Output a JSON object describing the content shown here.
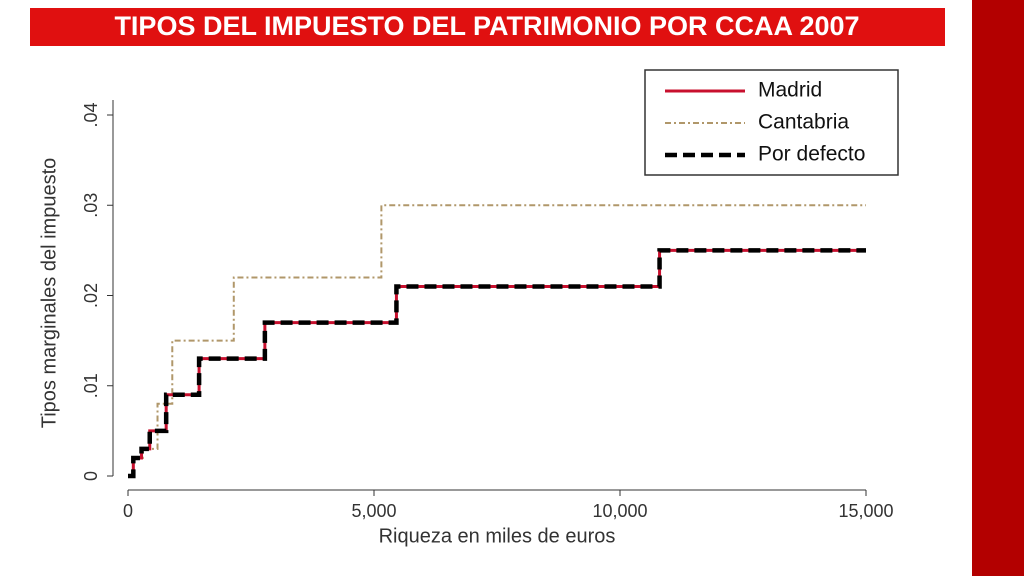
{
  "chart_data": {
    "type": "line",
    "title": "TIPOS DEL IMPUESTO DEL PATRIMONIO POR CCAA 2007",
    "x_label": "Riqueza en miles de euros",
    "y_label": "Tipos marginales del impuesto",
    "xlim": [
      0,
      15000
    ],
    "ylim": [
      0,
      0.04
    ],
    "xticks": [
      0,
      {
        "value": 5000,
        "label": "5,000"
      },
      {
        "value": 10000,
        "label": "10,000"
      },
      {
        "value": 15000,
        "label": "15,000"
      }
    ],
    "yticks": [
      0,
      {
        "value": 0.01,
        "label": ".01"
      },
      {
        "value": 0.02,
        "label": ".02"
      },
      {
        "value": 0.03,
        "label": ".03"
      },
      {
        "value": 0.04,
        "label": ".04"
      }
    ],
    "legend": "top-right",
    "series": [
      {
        "name": "Madrid",
        "color": "#c8102e",
        "style": "solid",
        "x": [
          0,
          108,
          108,
          275,
          275,
          442,
          442,
          776,
          776,
          1445,
          1445,
          2782,
          2782,
          5456,
          5456,
          10804,
          10804,
          15000
        ],
        "values": [
          0,
          0,
          0.002,
          0.002,
          0.003,
          0.003,
          0.005,
          0.005,
          0.009,
          0.009,
          0.013,
          0.013,
          0.017,
          0.017,
          0.021,
          0.021,
          0.025,
          0.025
        ]
      },
      {
        "name": "Cantabria",
        "color": "#b0976a",
        "style": "dashdot",
        "x": [
          0,
          108,
          108,
          300,
          300,
          600,
          600,
          900,
          900,
          2150,
          2150,
          5150,
          5150,
          15000
        ],
        "values": [
          0,
          0,
          0.002,
          0.002,
          0.003,
          0.003,
          0.008,
          0.008,
          0.015,
          0.015,
          0.022,
          0.022,
          0.03,
          0.03
        ]
      },
      {
        "name": "Por defecto",
        "color": "#000000",
        "style": "dashed",
        "x": [
          0,
          108,
          108,
          275,
          275,
          442,
          442,
          776,
          776,
          1445,
          1445,
          2782,
          2782,
          5456,
          5456,
          10804,
          10804,
          15000
        ],
        "values": [
          0,
          0,
          0.002,
          0.002,
          0.003,
          0.003,
          0.005,
          0.005,
          0.009,
          0.009,
          0.013,
          0.013,
          0.017,
          0.017,
          0.021,
          0.021,
          0.025,
          0.025
        ]
      }
    ]
  }
}
